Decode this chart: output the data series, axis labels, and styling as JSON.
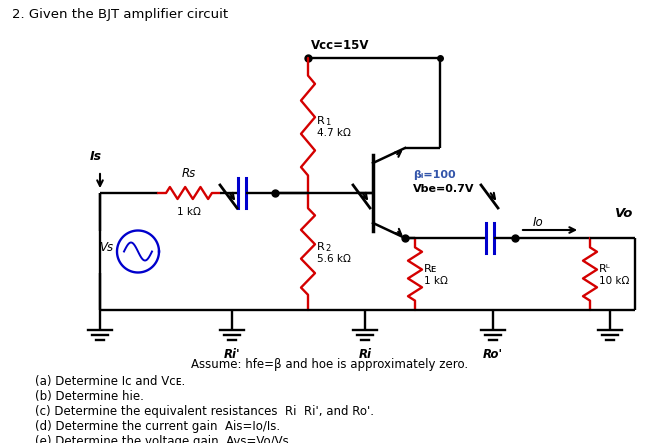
{
  "title": "2. Given the BJT amplifier circuit",
  "vcc_label": "Vcc=15V",
  "r1_label1": "R",
  "r1_label2": "1",
  "r1_val": "4.7 kΩ",
  "r2_label1": "R",
  "r2_label2": "2",
  "r2_val": "5.6 kΩ",
  "re_label": "Rᴇ",
  "re_val": "1 kΩ",
  "rl_label": "Rᴸ",
  "rl_val": "10 kΩ",
  "rs_label": "Rs",
  "rs_val": "1 kΩ",
  "beta_label": "βᵢ=100",
  "vbe_label": "Vbe=0.7V",
  "is_label": "Is",
  "vs_label": "Vs",
  "vo_label": "Vo",
  "io_label": "Io",
  "ri_prime_label": "Ri'",
  "ri_label": "Ri",
  "ro_prime_label": "Ro'",
  "assume_text": "Assume: hfe=β and hoe is approximately zero.",
  "qa_text": "(a) Determine Iᴄ and Vᴄᴇ.",
  "qb_text": "(b) Determine hie.",
  "qc_text": "(c) Determine the equivalent resistances  Ri  Ri', and Ro'.",
  "qd_text": "(d) Determine the current gain  Ais=Io/Is.",
  "qe_text": "(e) Determine the voltage gain  Avs=Vo/Vs.",
  "red": "#d40000",
  "blue": "#0000cc",
  "black": "#000000",
  "bg": "#ffffff",
  "beta_color": "#3355aa"
}
